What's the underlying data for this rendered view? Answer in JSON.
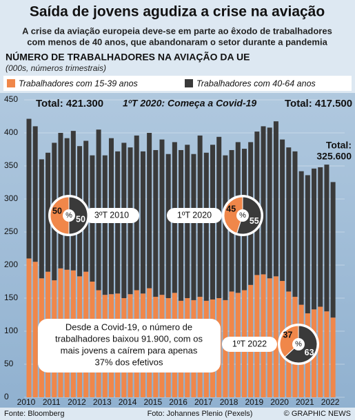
{
  "chart_data": {
    "type": "bar",
    "stacked": true,
    "title": "Saída de jovens agudiza a crise na aviação",
    "subtitle": [
      "A crise da aviação europeia deve-se em parte ao êxodo de trabalhadores",
      "com menos de 40 anos, que abandonaram o setor durante a pandemia"
    ],
    "heading": "NÚMERO DE TRABALHADORES NA AVIAÇÃO DA UE",
    "units": "(000s, números trimestrais)",
    "categories": [
      "2010",
      null,
      null,
      null,
      "2011",
      null,
      null,
      null,
      "2012",
      null,
      null,
      null,
      "2013",
      null,
      null,
      null,
      "2014",
      null,
      null,
      null,
      "2015",
      null,
      null,
      null,
      "2016",
      null,
      null,
      null,
      "2017",
      null,
      null,
      null,
      "2018",
      null,
      null,
      null,
      "2019",
      null,
      null,
      null,
      "2020",
      null,
      null,
      null,
      "2021",
      null,
      null,
      null,
      "2022"
    ],
    "series": [
      {
        "name": "Trabalhadores com 15-39 anos",
        "color": "#f0874a",
        "values": [
          210,
          205,
          180,
          190,
          177,
          195,
          193,
          192,
          183,
          190,
          175,
          162,
          155,
          156,
          157,
          150,
          156,
          162,
          157,
          165,
          152,
          155,
          150,
          158,
          146,
          150,
          147,
          152,
          146,
          148,
          150,
          147,
          160,
          158,
          162,
          170,
          185,
          186,
          180,
          183,
          176,
          160,
          152,
          140,
          127,
          133,
          137,
          130,
          120.6
        ]
      },
      {
        "name": "Trabalhadores com 40-64 anos",
        "color": "#3a3a3a",
        "values": [
          211.3,
          205,
          180,
          180,
          208,
          205,
          199,
          211,
          197,
          198,
          191,
          243,
          211,
          236,
          215,
          235,
          222,
          234,
          215,
          235,
          222,
          235,
          218,
          228,
          228,
          232,
          221,
          244,
          224,
          234,
          244,
          219,
          214,
          228,
          214,
          216,
          217,
          224,
          228,
          234.5,
          214,
          218,
          220,
          202,
          209,
          213,
          211,
          222,
          205
        ]
      }
    ],
    "ylim": [
      0,
      450
    ],
    "yticks": [
      0,
      50,
      100,
      150,
      200,
      250,
      300,
      350,
      400,
      450
    ],
    "annotations": [
      {
        "text": "Total: 421.300"
      },
      {
        "text": "1ºT 2020: Começa a Covid-19"
      },
      {
        "text": "Total: 417.500"
      },
      {
        "text": "Total:"
      },
      {
        "text": "325.600"
      }
    ],
    "pie_symbol": "%",
    "pies": [
      {
        "label": "3ºT 2010",
        "values": [
          50,
          50
        ]
      },
      {
        "label": "1ºT 2020",
        "values": [
          45,
          55
        ]
      },
      {
        "label": "1ºT 2022",
        "values": [
          37,
          63
        ]
      }
    ],
    "note": [
      "Desde a Covid-19, o número de",
      "trabalhadores baixou 91.900, com os",
      "mais jovens a caírem para apenas",
      "37% dos efetivos"
    ],
    "footer": [
      "Fonte: Bloomberg",
      "Foto: Johannes Plenio (Pexels)",
      "© GRAPHIC NEWS"
    ]
  }
}
